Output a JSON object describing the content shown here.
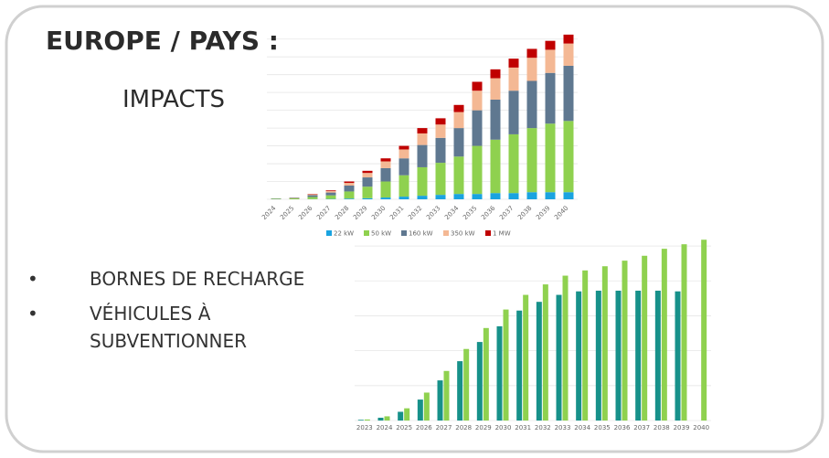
{
  "slide": {
    "title": "EUROPE / PAYS :",
    "subtitle": "IMPACTS",
    "bullets": [
      "BORNES DE RECHARGE",
      "VÉHICULES À SUBVENTIONNER"
    ]
  },
  "chart_data": [
    {
      "type": "bar",
      "stacked": true,
      "grid": true,
      "legend": "bottom",
      "categories": [
        "2024",
        "2025",
        "2026",
        "2027",
        "2028",
        "2029",
        "2030",
        "2031",
        "2032",
        "2033",
        "2034",
        "2035",
        "2036",
        "2037",
        "2038",
        "2039",
        "2040"
      ],
      "ylim": [
        0,
        9.5
      ],
      "yticks": [
        0,
        1,
        2,
        3,
        4,
        5,
        6,
        7,
        8,
        9
      ],
      "series": [
        {
          "name": "22 kW",
          "color": "#1aa3e0",
          "values": [
            0,
            0,
            0.01,
            0.02,
            0.04,
            0.06,
            0.1,
            0.15,
            0.2,
            0.25,
            0.3,
            0.3,
            0.35,
            0.35,
            0.4,
            0.4,
            0.4
          ]
        },
        {
          "name": "50 kW",
          "color": "#8fd14f",
          "values": [
            0.03,
            0.05,
            0.12,
            0.2,
            0.4,
            0.65,
            0.9,
            1.2,
            1.6,
            1.8,
            2.1,
            2.7,
            3.0,
            3.3,
            3.6,
            3.85,
            4.0
          ]
        },
        {
          "name": "160 kW",
          "color": "#5f7890",
          "values": [
            0.02,
            0.03,
            0.1,
            0.16,
            0.33,
            0.52,
            0.75,
            0.95,
            1.25,
            1.4,
            1.6,
            2.0,
            2.25,
            2.45,
            2.65,
            2.85,
            3.1
          ]
        },
        {
          "name": "350 kW",
          "color": "#f4b894",
          "values": [
            0,
            0.02,
            0.05,
            0.08,
            0.15,
            0.25,
            0.38,
            0.5,
            0.65,
            0.75,
            0.9,
            1.1,
            1.2,
            1.3,
            1.3,
            1.3,
            1.25
          ]
        },
        {
          "name": "1 MW",
          "color": "#c00000",
          "values": [
            0,
            0,
            0.02,
            0.04,
            0.08,
            0.12,
            0.17,
            0.2,
            0.3,
            0.35,
            0.4,
            0.5,
            0.5,
            0.5,
            0.5,
            0.5,
            0.5
          ]
        }
      ]
    },
    {
      "type": "bar",
      "stacked": false,
      "grid": true,
      "categories": [
        "2023",
        "2024",
        "2025",
        "2026",
        "2027",
        "2028",
        "2029",
        "2030",
        "2031",
        "2032",
        "2033",
        "2034",
        "2035",
        "2036",
        "2037",
        "2038",
        "2039",
        "2040"
      ],
      "ylim": [
        0,
        5.5
      ],
      "yticks": [
        0,
        1,
        2,
        3,
        4,
        5
      ],
      "series": [
        {
          "color": "#17918a",
          "values": [
            0.02,
            0.08,
            0.25,
            0.6,
            1.15,
            1.7,
            2.25,
            2.7,
            3.15,
            3.4,
            3.6,
            3.7,
            3.72,
            3.72,
            3.72,
            3.72,
            3.7,
            null
          ]
        },
        {
          "color": "#8fd14f",
          "values": [
            0.03,
            0.12,
            0.35,
            0.8,
            1.42,
            2.05,
            2.65,
            3.18,
            3.6,
            3.9,
            4.15,
            4.3,
            4.42,
            4.58,
            4.72,
            4.92,
            5.05,
            5.18
          ]
        }
      ]
    }
  ]
}
